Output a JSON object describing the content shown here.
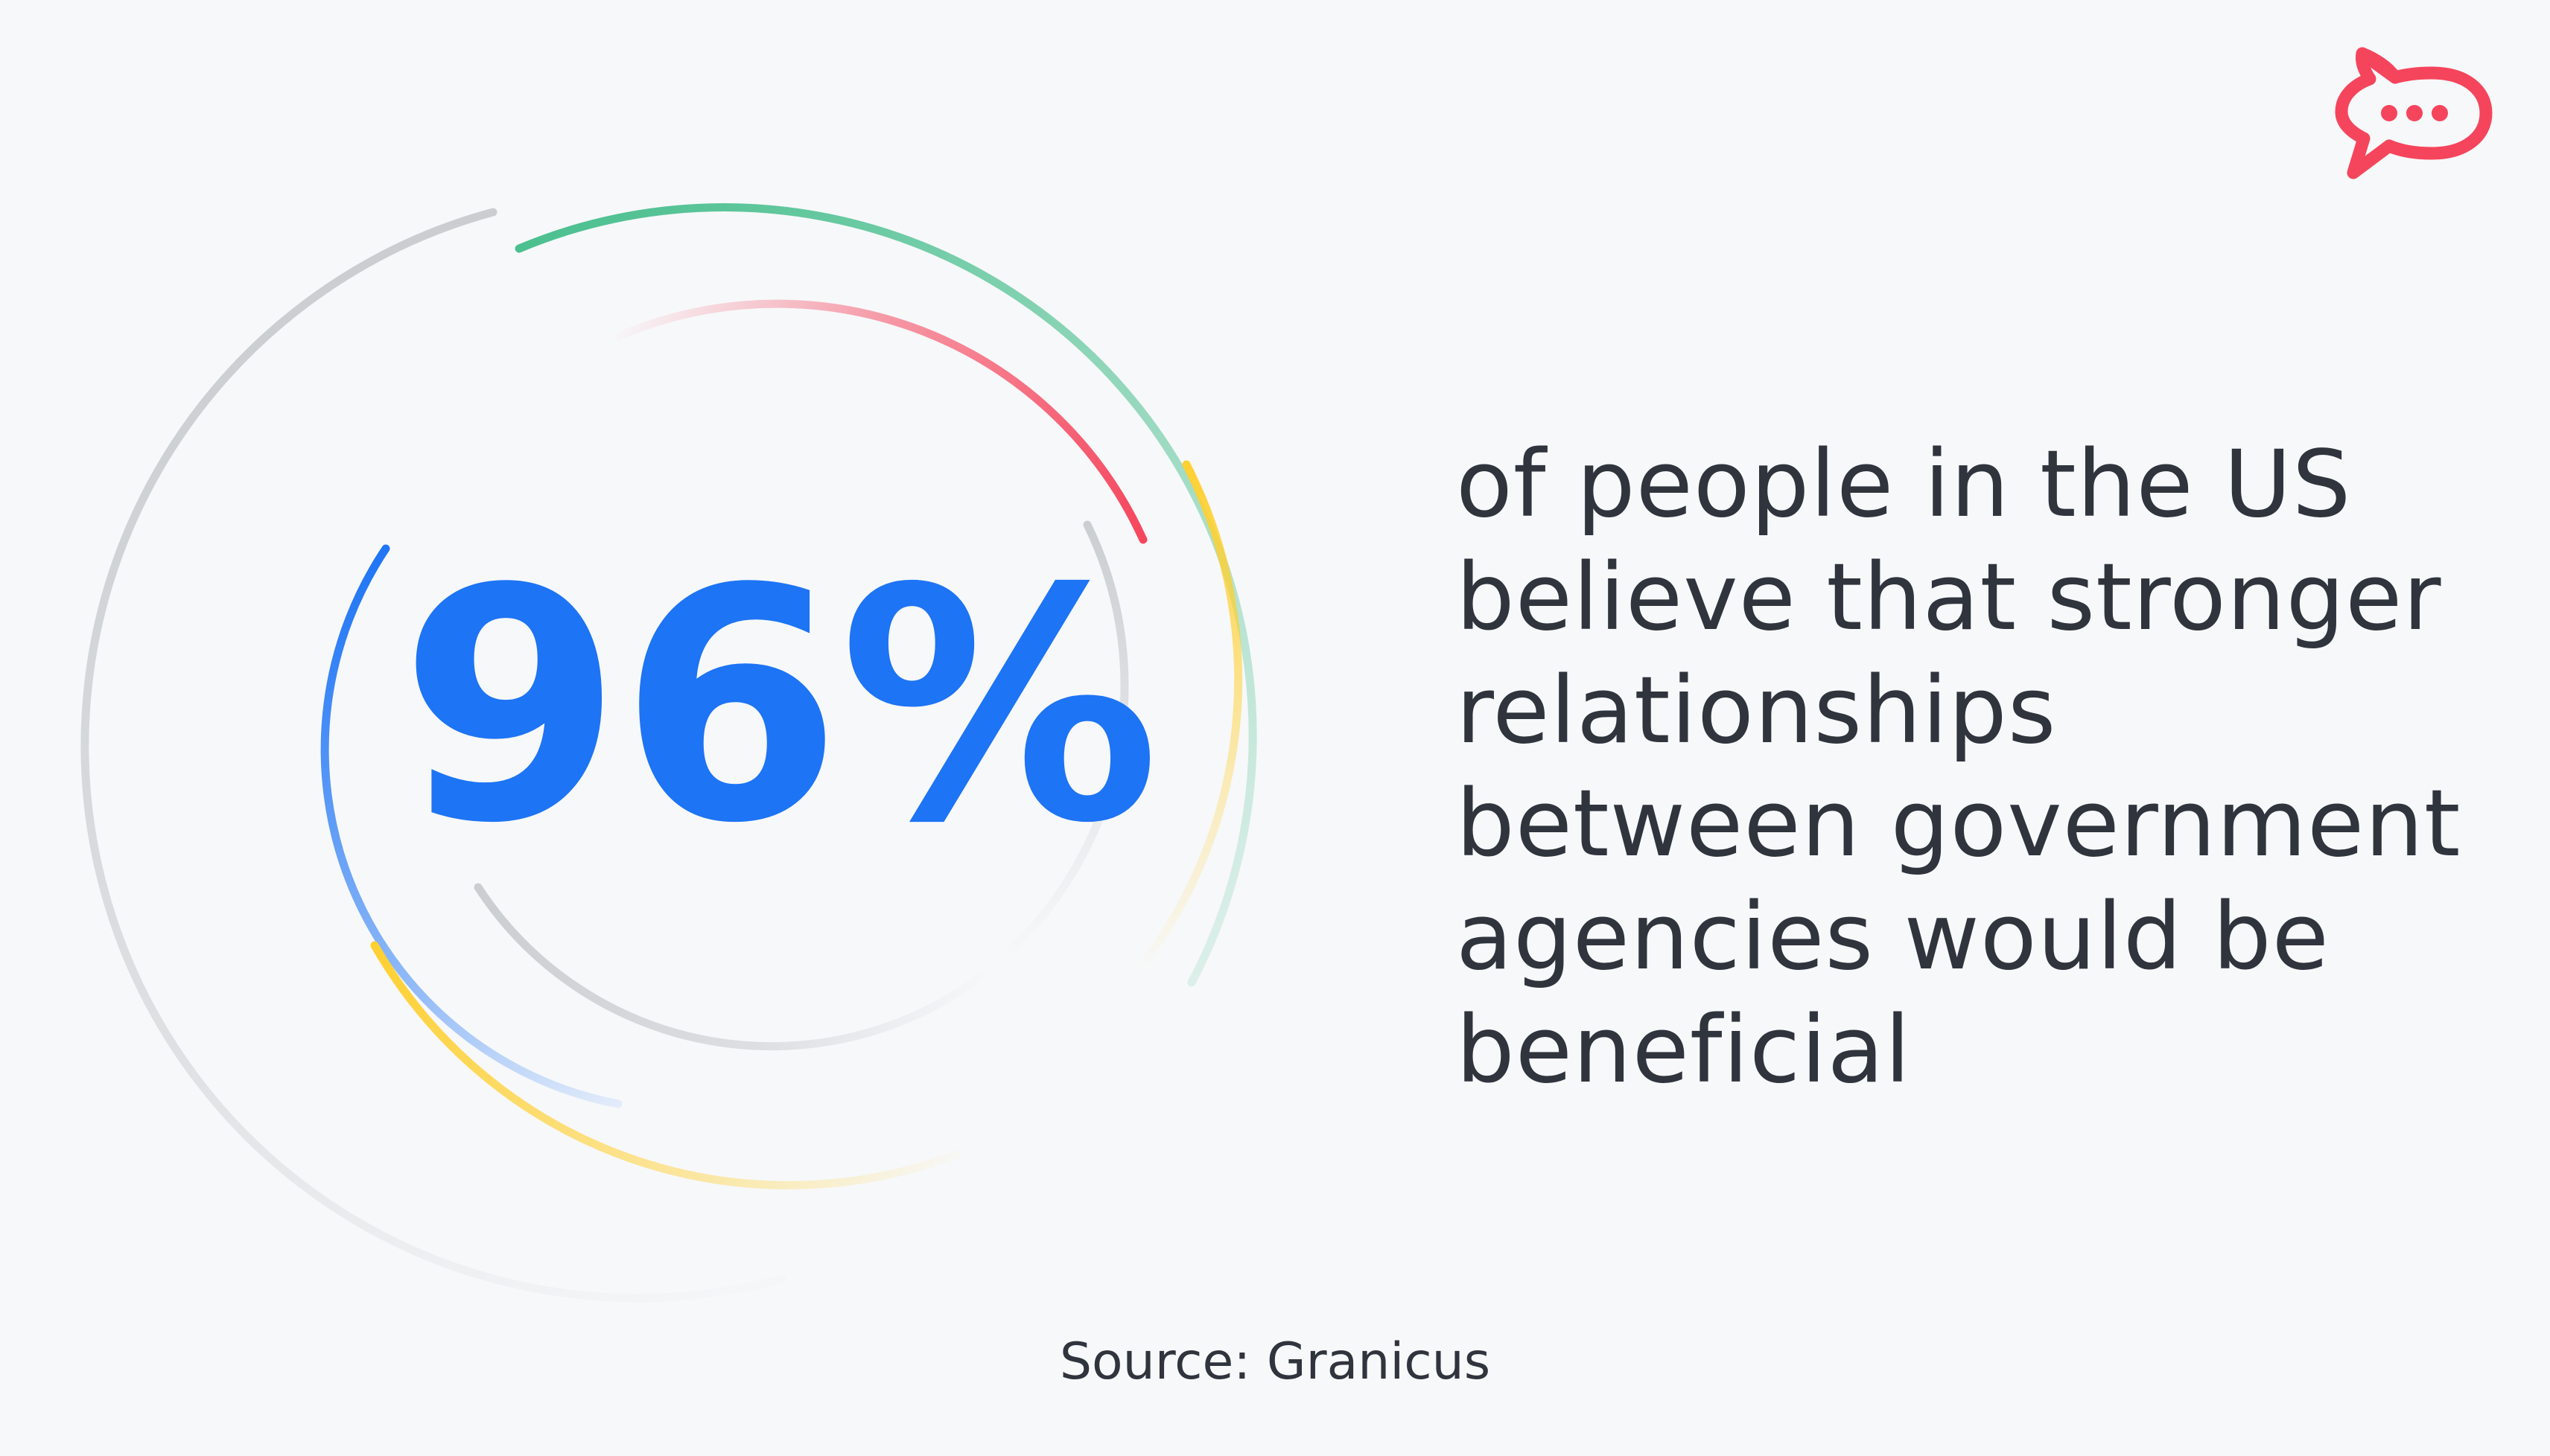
{
  "stat": {
    "value": "96%",
    "color": "#1d74f5"
  },
  "statement": {
    "lines": [
      "of people in the US",
      "believe that stronger",
      "relationships",
      "between government",
      "agencies would be",
      "beneficial"
    ],
    "color": "#2f343d"
  },
  "source": {
    "text": "Source: Granicus",
    "color": "#2f343d"
  },
  "logo": {
    "icon": "rocket-chat-logo-icon",
    "color": "#f5455c"
  },
  "rings": {
    "colors": {
      "green": "#2eb67d",
      "red": "#f5455c",
      "blue": "#1d74f5",
      "yellow": "#ffd031",
      "gray": "#cbced1"
    }
  }
}
